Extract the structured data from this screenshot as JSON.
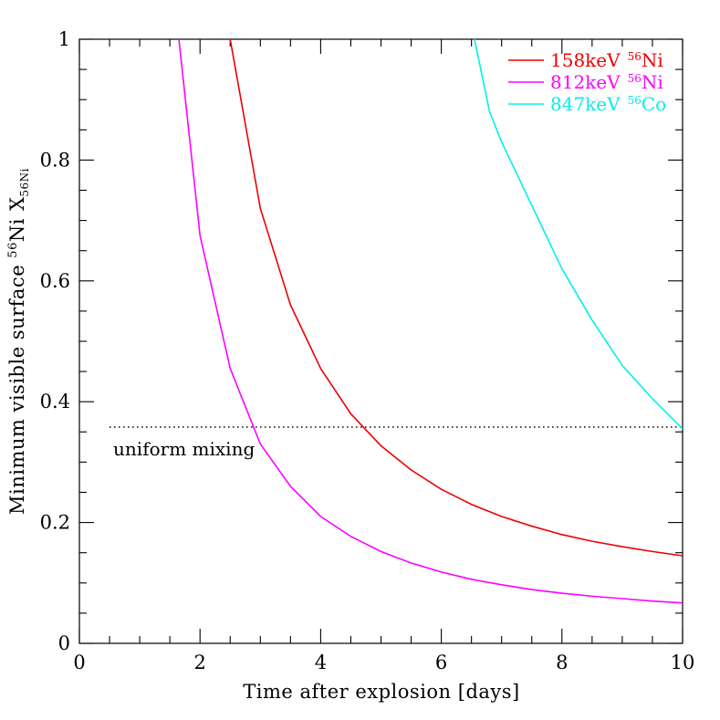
{
  "chart_data": {
    "type": "line",
    "xlabel": "Time after explosion [days]",
    "ylabel": {
      "prefix": "Minimum visible surface ",
      "sup": "56",
      "element": "Ni",
      "x_char": "X",
      "sub": "56Ni"
    },
    "xlim": [
      0,
      10
    ],
    "ylim": [
      0,
      1
    ],
    "xticks_major": [
      0,
      2,
      4,
      6,
      8,
      10
    ],
    "yticks_major": [
      0,
      0.2,
      0.4,
      0.6,
      0.8,
      1
    ],
    "xtick_labels": [
      "0",
      "2",
      "4",
      "6",
      "8",
      "10"
    ],
    "ytick_labels": [
      "0",
      "0.2",
      "0.4",
      "0.6",
      "0.8",
      "1"
    ],
    "grid": false,
    "legend_position": "top-right",
    "series": [
      {
        "energy": "158keV",
        "sup": "56",
        "isotope": "Ni",
        "color": "#ee0000",
        "x": [
          2.5,
          3.0,
          3.5,
          4.0,
          4.5,
          5.0,
          5.5,
          6.0,
          6.5,
          7.0,
          7.5,
          8.0,
          8.5,
          9.0,
          9.5,
          10.0
        ],
        "y": [
          1.0,
          0.72,
          0.56,
          0.455,
          0.38,
          0.327,
          0.287,
          0.255,
          0.23,
          0.21,
          0.194,
          0.18,
          0.169,
          0.16,
          0.152,
          0.145
        ]
      },
      {
        "energy": "812keV",
        "sup": "56",
        "isotope": "Ni",
        "color": "#ff00ff",
        "x": [
          1.65,
          2.0,
          2.5,
          3.0,
          3.5,
          4.0,
          4.5,
          5.0,
          5.5,
          6.0,
          6.5,
          7.0,
          7.5,
          8.0,
          8.5,
          9.0,
          9.5,
          10.0
        ],
        "y": [
          1.0,
          0.675,
          0.455,
          0.33,
          0.26,
          0.21,
          0.177,
          0.152,
          0.133,
          0.118,
          0.106,
          0.097,
          0.089,
          0.083,
          0.078,
          0.074,
          0.07,
          0.067
        ]
      },
      {
        "energy": "847keV",
        "sup": "56",
        "isotope": "Co",
        "color": "#00eeee",
        "x": [
          6.55,
          6.8,
          7.0,
          7.5,
          8.0,
          8.5,
          9.0,
          9.5,
          10.0
        ],
        "y": [
          1.0,
          0.88,
          0.83,
          0.725,
          0.62,
          0.535,
          0.46,
          0.405,
          0.355
        ]
      }
    ],
    "reference_line": {
      "label": "uniform mixing",
      "y": 0.358,
      "x_start": 0.5,
      "x_end": 10.0,
      "style": "dotted"
    }
  }
}
